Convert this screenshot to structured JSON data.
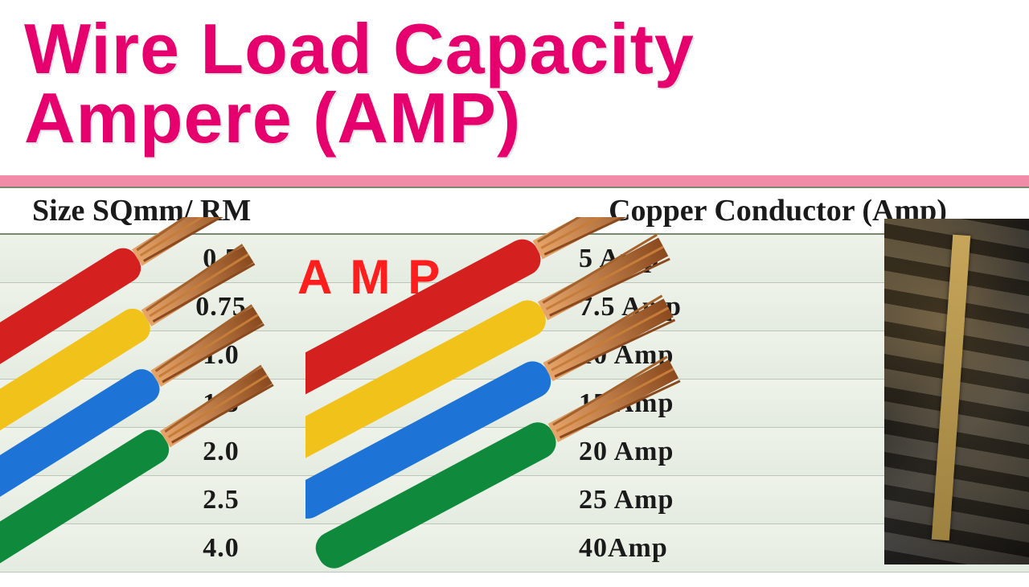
{
  "title_line1": "Wire Load Capacity",
  "title_line2": "Ampere (AMP)",
  "title_color": "#e5006d",
  "pink_bar_color": "#f08ca8",
  "table": {
    "bg": "#e8eee6",
    "header_size": "Size SQmm/ RM",
    "header_amp": "Copper Conductor (Amp)",
    "rows": [
      {
        "size": "0.5",
        "amp": "5 Amp"
      },
      {
        "size": "0.75",
        "amp": "7.5 Amp"
      },
      {
        "size": "1.0",
        "amp": "10 Amp"
      },
      {
        "size": "1.5",
        "amp": "15 Amp"
      },
      {
        "size": "2.0",
        "amp": "20 Amp"
      },
      {
        "size": "2.5",
        "amp": "25 Amp"
      },
      {
        "size": "4.0",
        "amp": "40Amp"
      }
    ]
  },
  "amp_overlay": "AMP",
  "amp_overlay_color": "#ff1e1e",
  "wire_colors": {
    "red": "#d4201f",
    "yellow": "#f1c31a",
    "blue": "#1e73d6",
    "green": "#0f8a3c",
    "copper_light": "#e7a56a",
    "copper_dark": "#8a4a1e"
  }
}
